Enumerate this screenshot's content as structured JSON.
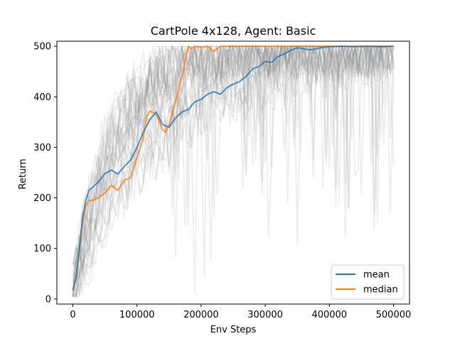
{
  "chart_data": {
    "type": "line",
    "title": "CartPole 4x128, Agent: Basic",
    "xlabel": "Env Steps",
    "ylabel": "Return",
    "xlim": [
      -25000,
      525000
    ],
    "ylim": [
      -10,
      510
    ],
    "xticks": [
      {
        "value": 0,
        "label": "0"
      },
      {
        "value": 100000,
        "label": "100000"
      },
      {
        "value": 200000,
        "label": "200000"
      },
      {
        "value": 300000,
        "label": "300000"
      },
      {
        "value": 400000,
        "label": "400000"
      },
      {
        "value": 500000,
        "label": "500000"
      }
    ],
    "yticks": [
      {
        "value": 0,
        "label": "0"
      },
      {
        "value": 100,
        "label": "100"
      },
      {
        "value": 200,
        "label": "200"
      },
      {
        "value": 300,
        "label": "300"
      },
      {
        "value": 400,
        "label": "400"
      },
      {
        "value": 500,
        "label": "500"
      }
    ],
    "grid": false,
    "legend_position": "lower-right",
    "colors": {
      "mean": "#1f77b4",
      "median": "#ff7f0e",
      "runs": "#808080"
    },
    "series": [
      {
        "name": "mean",
        "x": [
          0,
          5000,
          10000,
          15000,
          20000,
          25000,
          30000,
          40000,
          50000,
          60000,
          70000,
          80000,
          90000,
          100000,
          110000,
          120000,
          130000,
          140000,
          150000,
          160000,
          170000,
          180000,
          190000,
          200000,
          210000,
          220000,
          230000,
          240000,
          250000,
          260000,
          270000,
          280000,
          290000,
          300000,
          310000,
          320000,
          330000,
          340000,
          350000,
          360000,
          370000,
          380000,
          390000,
          400000,
          420000,
          440000,
          460000,
          480000,
          500000
        ],
        "values": [
          17,
          45,
          100,
          160,
          195,
          215,
          220,
          232,
          248,
          255,
          247,
          262,
          275,
          300,
          330,
          355,
          370,
          345,
          340,
          358,
          370,
          375,
          390,
          395,
          405,
          410,
          405,
          418,
          425,
          430,
          440,
          455,
          460,
          470,
          468,
          480,
          485,
          492,
          497,
          495,
          493,
          495,
          498,
          499,
          500,
          499,
          500,
          499,
          500
        ]
      },
      {
        "name": "median",
        "x": [
          0,
          5000,
          10000,
          15000,
          20000,
          25000,
          30000,
          40000,
          50000,
          60000,
          70000,
          80000,
          90000,
          100000,
          110000,
          115000,
          120000,
          130000,
          140000,
          145000,
          150000,
          160000,
          170000,
          175000,
          180000,
          185000,
          190000,
          200000,
          210000,
          220000,
          230000,
          240000,
          250000,
          300000,
          350000,
          400000,
          450000,
          500000
        ],
        "values": [
          17,
          42,
          95,
          150,
          185,
          195,
          195,
          200,
          210,
          225,
          215,
          235,
          240,
          280,
          320,
          360,
          372,
          365,
          335,
          330,
          345,
          390,
          440,
          470,
          500,
          495,
          500,
          498,
          500,
          490,
          500,
          500,
          500,
          500,
          500,
          500,
          500,
          500
        ]
      }
    ]
  }
}
